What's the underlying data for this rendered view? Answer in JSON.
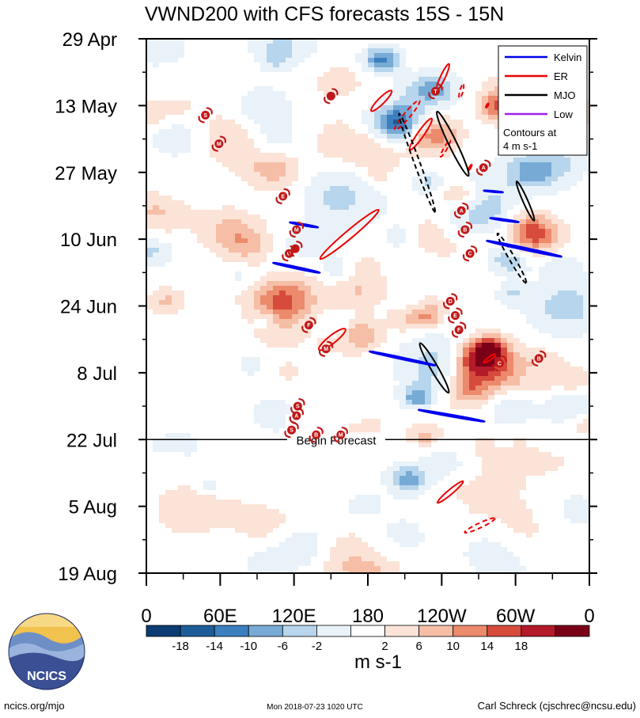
{
  "chart_data": {
    "type": "heatmap",
    "title": "VWND200 with CFS forecasts  15S - 15N",
    "x_axis": {
      "range_deg_east": [
        0,
        360
      ],
      "tick_labels": [
        "0",
        "60E",
        "120E",
        "180",
        "120W",
        "60W",
        "0"
      ],
      "tick_values_deg_east": [
        0,
        60,
        120,
        180,
        240,
        300,
        360
      ]
    },
    "y_axis": {
      "reversed": true,
      "range": [
        "2018-04-29",
        "2018-08-19"
      ],
      "tick_labels": [
        "29 Apr",
        "13 May",
        "27 May",
        "10 Jun",
        "24 Jun",
        "8 Jul",
        "22 Jul",
        "5 Aug",
        "19 Aug"
      ],
      "tick_dates": [
        "2018-04-29",
        "2018-05-13",
        "2018-05-27",
        "2018-06-10",
        "2018-06-24",
        "2018-07-08",
        "2018-07-22",
        "2018-08-05",
        "2018-08-19"
      ]
    },
    "forecast_start": {
      "date": "2018-07-22",
      "label": "Begin Forecast"
    },
    "legend": {
      "position": "top-right",
      "entries": [
        {
          "label": "Kelvin",
          "color": "#0000ee"
        },
        {
          "label": "ER",
          "color": "#ee0000"
        },
        {
          "label": "MJO",
          "color": "#000000"
        },
        {
          "label": "Low",
          "color": "#a020f0"
        }
      ],
      "note_lines": [
        "Contours at",
        "4 m s-1"
      ]
    },
    "colorbar": {
      "unit": "m s-1",
      "labels": [
        "-18",
        "-14",
        "-10",
        "-6",
        "-2",
        "2",
        "6",
        "10",
        "14",
        "18"
      ],
      "colors": [
        "#0b3d72",
        "#1c5d99",
        "#3b7fbf",
        "#77abd6",
        "#b7d5ec",
        "#e9f2f8",
        "#ffffff",
        "#fbe3d8",
        "#f6bea6",
        "#ec8a6c",
        "#d64b3c",
        "#b31a2a",
        "#7a0018"
      ]
    },
    "wave_contours": [
      {
        "type": "ER",
        "lon": 165,
        "date": "2018-06-09",
        "angle": -40,
        "length_days": 16,
        "width": 5,
        "style": "solid"
      },
      {
        "type": "ER",
        "lon": 151,
        "date": "2018-07-01",
        "angle": -38,
        "length_days": 7,
        "width": 5,
        "style": "solid"
      },
      {
        "type": "ER",
        "lon": 191,
        "date": "2018-05-12",
        "angle": -45,
        "length_days": 6,
        "width": 4,
        "style": "solid"
      },
      {
        "type": "ER",
        "lon": 212,
        "date": "2018-05-15",
        "angle": -50,
        "length_days": 8,
        "width": 4,
        "style": "dashed"
      },
      {
        "type": "ER",
        "lon": 223,
        "date": "2018-05-19",
        "angle": -55,
        "length_days": 8,
        "width": 4,
        "style": "solid"
      },
      {
        "type": "ER",
        "lon": 241,
        "date": "2018-05-07",
        "angle": -65,
        "length_days": 6,
        "width": 3,
        "style": "solid"
      },
      {
        "type": "ER",
        "lon": 256,
        "date": "2018-05-10",
        "angle": -75,
        "length_days": 3,
        "width": 2,
        "style": "dashed"
      },
      {
        "type": "ER",
        "lon": 243,
        "date": "2018-05-22",
        "angle": -60,
        "length_days": 4,
        "width": 2,
        "style": "dashed"
      },
      {
        "type": "ER",
        "lon": 263,
        "date": "2018-05-26",
        "angle": -60,
        "length_days": 1.5,
        "width": 1,
        "style": "solid"
      },
      {
        "type": "ER",
        "lon": 277,
        "date": "2018-05-13",
        "angle": -60,
        "length_days": 1,
        "width": 1,
        "style": "solid"
      },
      {
        "type": "ER",
        "lon": 279,
        "date": "2018-07-05",
        "angle": -35,
        "length_days": 3,
        "width": 2,
        "style": "solid"
      },
      {
        "type": "ER",
        "lon": 247,
        "date": "2018-08-02",
        "angle": -40,
        "length_days": 7,
        "width": 3,
        "style": "solid"
      },
      {
        "type": "ER",
        "lon": 271,
        "date": "2018-08-09",
        "angle": -25,
        "length_days": 7,
        "width": 3,
        "style": "dashed"
      },
      {
        "type": "MJO",
        "lon": 220,
        "date": "2018-05-25",
        "angle": 70,
        "length_days": 22,
        "width": 3.5,
        "style": "dashed"
      },
      {
        "type": "MJO",
        "lon": 249,
        "date": "2018-05-21",
        "angle": 64,
        "length_days": 15,
        "width": 5,
        "style": "solid"
      },
      {
        "type": "MJO",
        "lon": 308,
        "date": "2018-06-02",
        "angle": 66,
        "length_days": 9,
        "width": 3,
        "style": "solid"
      },
      {
        "type": "MJO",
        "lon": 297,
        "date": "2018-06-14",
        "angle": 60,
        "length_days": 12,
        "width": 3.5,
        "style": "dashed"
      },
      {
        "type": "MJO",
        "lon": 234,
        "date": "2018-07-07",
        "angle": 60,
        "length_days": 12,
        "width": 4.5,
        "style": "solid"
      },
      {
        "type": "Kelvin",
        "lon": 307,
        "date": "2018-06-12",
        "angle": 12,
        "length_days": 16,
        "width": 1.2,
        "style": "solid"
      },
      {
        "type": "Kelvin",
        "lon": 122,
        "date": "2018-06-16",
        "angle": 12,
        "length_days": 10,
        "width": 1.0,
        "style": "solid"
      },
      {
        "type": "Kelvin",
        "lon": 208,
        "date": "2018-07-05",
        "angle": 12,
        "length_days": 14,
        "width": 1.0,
        "style": "solid"
      },
      {
        "type": "Kelvin",
        "lon": 248,
        "date": "2018-07-17",
        "angle": 10,
        "length_days": 14,
        "width": 1.0,
        "style": "solid"
      },
      {
        "type": "Kelvin",
        "lon": 128,
        "date": "2018-06-07",
        "angle": 10,
        "length_days": 6,
        "width": 0.8,
        "style": "solid"
      },
      {
        "type": "Kelvin",
        "lon": 291,
        "date": "2018-06-06",
        "angle": 8,
        "length_days": 6,
        "width": 0.8,
        "style": "solid"
      },
      {
        "type": "Kelvin",
        "lon": 282,
        "date": "2018-05-31",
        "angle": 5,
        "length_days": 4,
        "width": 0.6,
        "style": "solid"
      }
    ],
    "storm_markers": [
      {
        "letter": "S",
        "lon": 48,
        "date": "2018-05-15"
      },
      {
        "letter": "M",
        "lon": 59,
        "date": "2018-05-21"
      },
      {
        "letter": "",
        "lon": 150,
        "date": "2018-05-11"
      },
      {
        "letter": "E",
        "lon": 111,
        "date": "2018-06-01"
      },
      {
        "letter": "M",
        "lon": 122,
        "date": "2018-06-08"
      },
      {
        "letter": "G",
        "lon": 116,
        "date": "2018-06-13"
      },
      {
        "letter": "",
        "lon": 121,
        "date": "2018-06-12"
      },
      {
        "letter": "F",
        "lon": 132,
        "date": "2018-06-28"
      },
      {
        "letter": "M",
        "lon": 146,
        "date": "2018-07-03"
      },
      {
        "letter": "S",
        "lon": 123,
        "date": "2018-07-15"
      },
      {
        "letter": "A",
        "lon": 122,
        "date": "2018-07-17"
      },
      {
        "letter": "S",
        "lon": 118,
        "date": "2018-07-20"
      },
      {
        "letter": "B",
        "lon": 138,
        "date": "2018-07-21"
      },
      {
        "letter": "M",
        "lon": 158,
        "date": "2018-07-21"
      },
      {
        "letter": "T",
        "lon": 235,
        "date": "2018-05-10"
      },
      {
        "letter": "A",
        "lon": 274,
        "date": "2018-05-26"
      },
      {
        "letter": "A",
        "lon": 256,
        "date": "2018-06-04"
      },
      {
        "letter": "B",
        "lon": 259,
        "date": "2018-06-08"
      },
      {
        "letter": "C",
        "lon": 263,
        "date": "2018-06-13"
      },
      {
        "letter": "D",
        "lon": 247,
        "date": "2018-06-23"
      },
      {
        "letter": "E",
        "lon": 251,
        "date": "2018-06-26"
      },
      {
        "letter": "F",
        "lon": 254,
        "date": "2018-06-29"
      },
      {
        "letter": "C",
        "lon": 287,
        "date": "2018-07-06"
      },
      {
        "letter": "B",
        "lon": 319,
        "date": "2018-07-05"
      }
    ]
  },
  "footer": {
    "logo_text": "NCICS",
    "url_text": "ncics.org/mjo",
    "timestamp": "Mon 2018-07-23 1020 UTC",
    "credit": "Carl Schreck (cjschrec@ncsu.edu)"
  }
}
